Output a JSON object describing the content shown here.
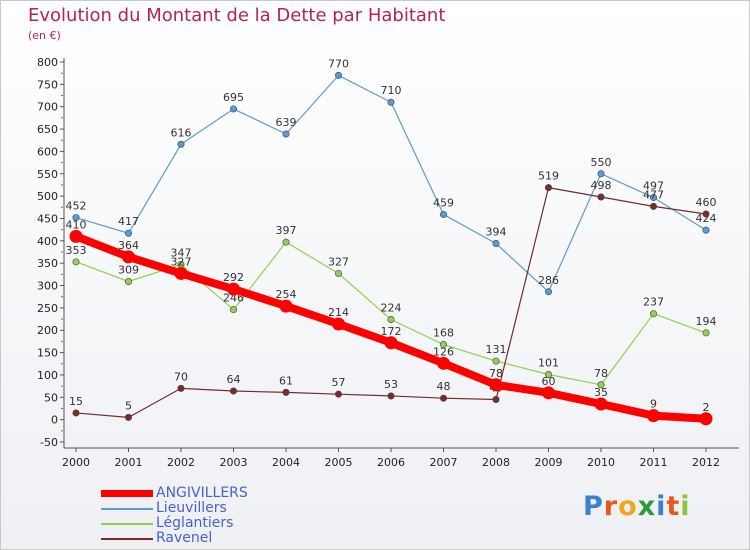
{
  "title": "Evolution du Montant de la Dette par Habitant",
  "unit": "(en €)",
  "logo": {
    "letters": [
      {
        "ch": "P",
        "color": "#3a7fd0"
      },
      {
        "ch": "r",
        "color": "#e8571e"
      },
      {
        "ch": "o",
        "color": "#f0a91c"
      },
      {
        "ch": "x",
        "color": "#2f9a3c"
      },
      {
        "ch": "i",
        "color": "#3a7fd0"
      },
      {
        "ch": "t",
        "color": "#e8571e"
      },
      {
        "ch": "i",
        "color": "#8cc43a"
      }
    ]
  },
  "chart_data": {
    "type": "line",
    "categories": [
      "2000",
      "2001",
      "2002",
      "2003",
      "2004",
      "2005",
      "2006",
      "2007",
      "2008",
      "2009",
      "2010",
      "2011",
      "2012"
    ],
    "ylim": [
      -50,
      800
    ],
    "yticks": [
      -50,
      0,
      50,
      100,
      150,
      200,
      250,
      300,
      350,
      400,
      450,
      500,
      550,
      600,
      650,
      700,
      750,
      800
    ],
    "grid": false,
    "legend_position": "bottom-left",
    "series": [
      {
        "name": "ANGIVILLERS",
        "color": "#ff0000",
        "values": [
          410,
          364,
          327,
          292,
          254,
          214,
          172,
          126,
          78,
          60,
          35,
          9,
          2
        ],
        "thick": true
      },
      {
        "name": "Lieuvillers",
        "color": "#5b9bd5",
        "values": [
          452,
          417,
          616,
          695,
          639,
          770,
          710,
          459,
          394,
          286,
          550,
          497,
          424
        ],
        "thick": false
      },
      {
        "name": "Léglantiers",
        "color": "#92d050",
        "values": [
          353,
          309,
          347,
          246,
          397,
          327,
          224,
          168,
          131,
          101,
          78,
          237,
          194
        ],
        "thick": false
      },
      {
        "name": "Ravenel",
        "color": "#7b2a2a",
        "values": [
          15,
          5,
          70,
          64,
          61,
          57,
          53,
          48,
          45,
          519,
          498,
          477,
          460
        ],
        "thick": false
      }
    ]
  }
}
